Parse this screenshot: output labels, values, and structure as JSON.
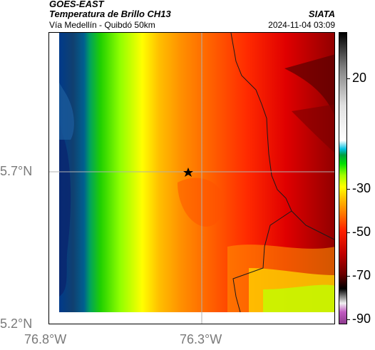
{
  "header": {
    "title": "GOES-EAST",
    "subtitle": "Temperatura de Brillo CH13",
    "route": "Vía Medellín - Quibdó 50km",
    "brand": "SIATA",
    "datetime": "2024-11-04 03:09"
  },
  "map": {
    "lat_labels": [
      "5.7°N",
      "5.2°N"
    ],
    "lon_labels": [
      "76.8°W",
      "76.3°W"
    ],
    "marker": "star-marker"
  },
  "colorbar": {
    "ticks": [
      "20",
      "-30",
      "-50",
      "-70",
      "-90"
    ],
    "colors": [
      "#8e3a8e",
      "#c05ac0",
      "#f0f0f0",
      "#000000",
      "#6b0000",
      "#c00000",
      "#ff2000",
      "#ff7a00",
      "#ffc000",
      "#ffff00",
      "#a0ff00",
      "#00e000",
      "#00a040",
      "#00c0e0",
      "#ffffff",
      "#c0c0c0",
      "#606060",
      "#000000"
    ]
  },
  "chart_data": {
    "type": "heatmap",
    "title": "Temperatura de Brillo CH13",
    "xlabel": "",
    "ylabel": "",
    "x_ticks": [
      "76.8°W",
      "76.3°W"
    ],
    "y_ticks": [
      "5.7°N",
      "5.2°N"
    ],
    "colorbar_ticks": [
      20,
      -30,
      -50,
      -70,
      -90
    ]
  }
}
